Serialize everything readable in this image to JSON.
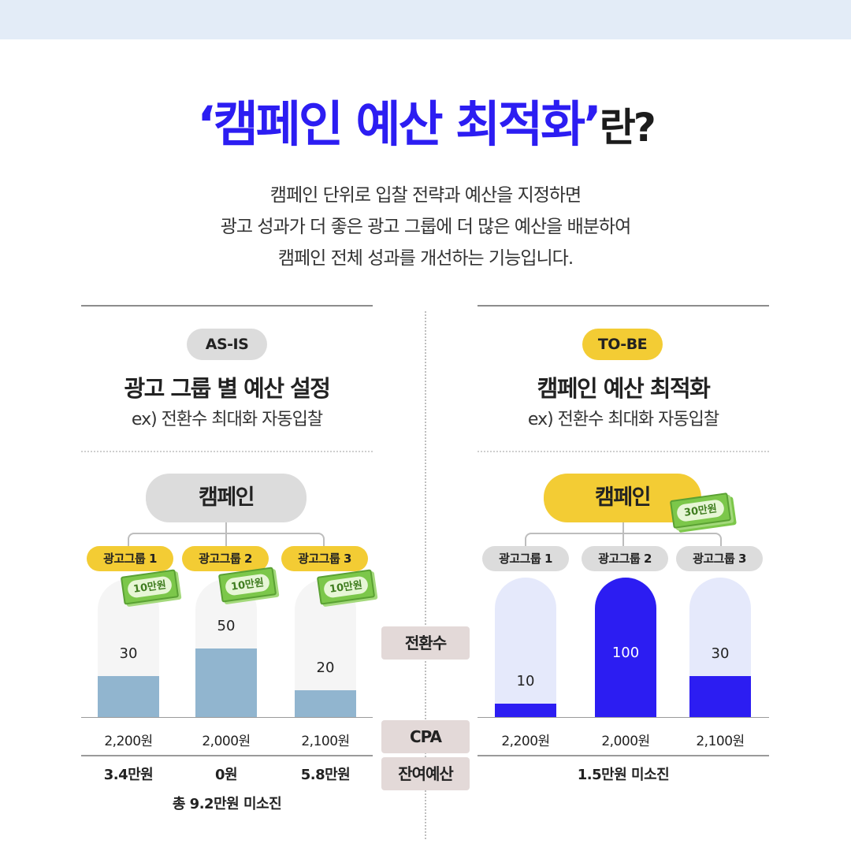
{
  "heading": {
    "quote_open": "‘",
    "main": "캠페인 예산 최적화",
    "quote_close": "’",
    "suffix": "란?"
  },
  "description": [
    "캠페인 단위로 입찰 전략과 예산을 지정하면",
    "광고 성과가 더 좋은 광고 그룹에 더 많은 예산을 배분하여",
    "캠페인 전체 성과를 개선하는 기능입니다."
  ],
  "as_is": {
    "tag": "AS-IS",
    "title": "광고 그룹 별 예산 설정",
    "subtitle": "ex) 전환수 최대화 자동입찰",
    "campaign": "캠페인",
    "groups": [
      {
        "label": "광고그룹 1",
        "budget": "10만원",
        "conversions": 30,
        "cpa": "2,200원",
        "remaining": "3.4만원"
      },
      {
        "label": "광고그룹 2",
        "budget": "10만원",
        "conversions": 50,
        "cpa": "2,000원",
        "remaining": "0원"
      },
      {
        "label": "광고그룹 3",
        "budget": "10만원",
        "conversions": 20,
        "cpa": "2,100원",
        "remaining": "5.8만원"
      }
    ],
    "total": "총 9.2만원 미소진"
  },
  "to_be": {
    "tag": "TO-BE",
    "title": "캠페인 예산 최적화",
    "subtitle": "ex) 전환수 최대화 자동입찰",
    "campaign": "캠페인",
    "campaign_budget": "30만원",
    "groups": [
      {
        "label": "광고그룹 1",
        "conversions": 10,
        "cpa": "2,200원"
      },
      {
        "label": "광고그룹 2",
        "conversions": 100,
        "cpa": "2,000원"
      },
      {
        "label": "광고그룹 3",
        "conversions": 30,
        "cpa": "2,100원"
      }
    ],
    "total": "1.5만원 미소진"
  },
  "row_labels": {
    "conversions": "전환수",
    "cpa": "CPA",
    "remaining": "잔여예산"
  },
  "colors": {
    "accent_blue": "#2c1df2",
    "as_is_bar": "#91b5cf",
    "bar_track_as_is": "#f5f5f5",
    "bar_track_to_be": "#e5e9fb",
    "yellow": "#f3cc34",
    "gray_pill": "#dcdcdc",
    "money_green": "#7cc74a"
  },
  "chart_scale_max": 100
}
